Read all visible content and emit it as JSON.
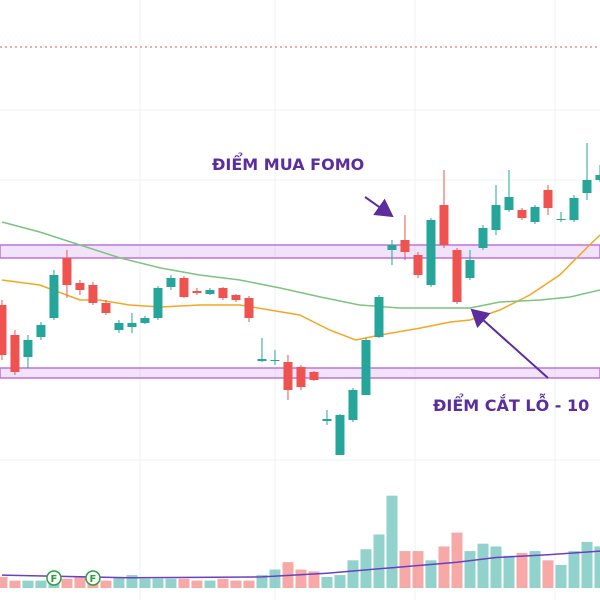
{
  "chart_data": {
    "type": "candlestick",
    "xlim": [
      -0.15,
      46
    ],
    "ylim": [
      0,
      600
    ],
    "open": [
      295,
      265,
      243,
      263,
      282,
      342,
      317,
      315,
      297,
      270,
      273,
      277,
      282,
      313,
      322,
      309,
      306,
      312,
      305,
      302,
      239,
      239,
      238,
      233,
      228,
      179,
      145,
      180,
      205,
      263,
      350,
      360,
      345,
      315,
      395,
      350,
      322,
      352,
      370,
      390,
      390,
      378,
      410,
      380,
      380,
      407,
      420
    ],
    "close": [
      245,
      228,
      260,
      275,
      325,
      315,
      310,
      297,
      287,
      277,
      277,
      282,
      312,
      322,
      303,
      307,
      310,
      302,
      300,
      282,
      241,
      240,
      210,
      213,
      220,
      181,
      185,
      210,
      260,
      303,
      355,
      348,
      325,
      380,
      355,
      298,
      340,
      372,
      395,
      403,
      382,
      393,
      392,
      381,
      402,
      420,
      425
    ],
    "high": [
      300,
      270,
      265,
      278,
      330,
      350,
      320,
      318,
      300,
      280,
      287,
      284,
      314,
      325,
      324,
      312,
      312,
      313,
      306,
      304,
      262,
      250,
      245,
      235,
      229,
      190,
      186,
      212,
      262,
      305,
      360,
      385,
      348,
      382,
      430,
      352,
      350,
      375,
      415,
      430,
      392,
      395,
      415,
      388,
      405,
      457,
      435
    ],
    "low": [
      240,
      225,
      232,
      260,
      280,
      302,
      305,
      295,
      285,
      267,
      267,
      276,
      280,
      310,
      302,
      305,
      305,
      300,
      298,
      278,
      238,
      235,
      200,
      210,
      219,
      175,
      145,
      178,
      205,
      262,
      335,
      340,
      322,
      313,
      352,
      296,
      320,
      350,
      365,
      388,
      380,
      376,
      385,
      378,
      378,
      400,
      418
    ],
    "up_color": "#26a69a",
    "down_color": "#ef5350",
    "moving_averages": [
      {
        "color": "#f5a623",
        "x": [
          0,
          2.9,
          6,
          7.5,
          9.8,
          12.2,
          15.2,
          18.3,
          20.6,
          22.9,
          25.2,
          27.2,
          29.1,
          32.2,
          34.5,
          36,
          38.3,
          40.6,
          42.9,
          45.2,
          46
        ],
        "values": [
          320,
          315,
          300,
          300,
          295,
          293,
          295,
          295,
          290,
          285,
          270,
          260,
          265,
          272,
          278,
          280,
          290,
          305,
          325,
          355,
          365
        ]
      },
      {
        "color": "#7cc47f",
        "x": [
          0,
          2.9,
          6,
          9.1,
          12.2,
          15.2,
          18.3,
          21.4,
          24.5,
          27.5,
          30.6,
          33.7,
          36,
          38.3,
          41.4,
          43.7,
          46
        ],
        "values": [
          378,
          368,
          355,
          342,
          332,
          325,
          320,
          312,
          303,
          295,
          292,
          292,
          292,
          298,
          300,
          303,
          310
        ]
      }
    ],
    "zones": [
      [
        342,
        355
      ],
      [
        222,
        232
      ]
    ],
    "level": 553,
    "volume": [
      12,
      8,
      8,
      8,
      10,
      10,
      12,
      14,
      8,
      12,
      14,
      10,
      10,
      10,
      10,
      8,
      8,
      10,
      8,
      8,
      14,
      20,
      28,
      20,
      18,
      12,
      14,
      30,
      42,
      58,
      100,
      40,
      40,
      30,
      45,
      60,
      40,
      48,
      45,
      35,
      38,
      40,
      30,
      25,
      40,
      50,
      45
    ],
    "volume_ylim": [
      0,
      130
    ],
    "volume_ma": {
      "color": "#6a3fc4",
      "x": [
        0,
        10,
        20,
        25,
        30,
        35,
        38,
        42,
        46
      ],
      "values": [
        14,
        11,
        12,
        16,
        22,
        28,
        33,
        36,
        40
      ]
    },
    "markers": [
      "F",
      "F"
    ],
    "annotations": [
      "ĐIỂM MUA FOMO",
      "ĐIỂM CẮT LỖ - 10"
    ]
  }
}
